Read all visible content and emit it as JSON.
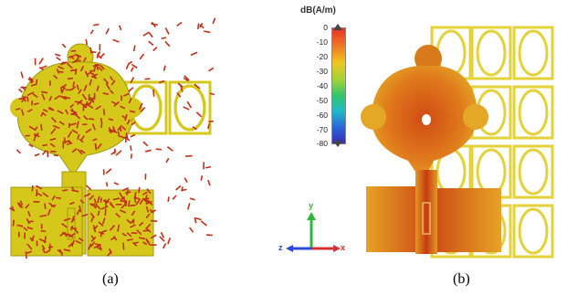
{
  "captions": {
    "a": "(a)",
    "b": "(b)"
  },
  "legend": {
    "title": "dB(A/m)",
    "ticks": [
      "0",
      "-10",
      "-20",
      "-30",
      "-40",
      "-50",
      "-60",
      "-70",
      "-80"
    ]
  },
  "axes": {
    "x": "x",
    "y": "y",
    "z": "z"
  },
  "colors": {
    "structure_a": "#d6c81a",
    "current_arrows": "#c0301a",
    "structure_b_outer": "#e4d23a",
    "structure_b_core": "#d04b14"
  }
}
